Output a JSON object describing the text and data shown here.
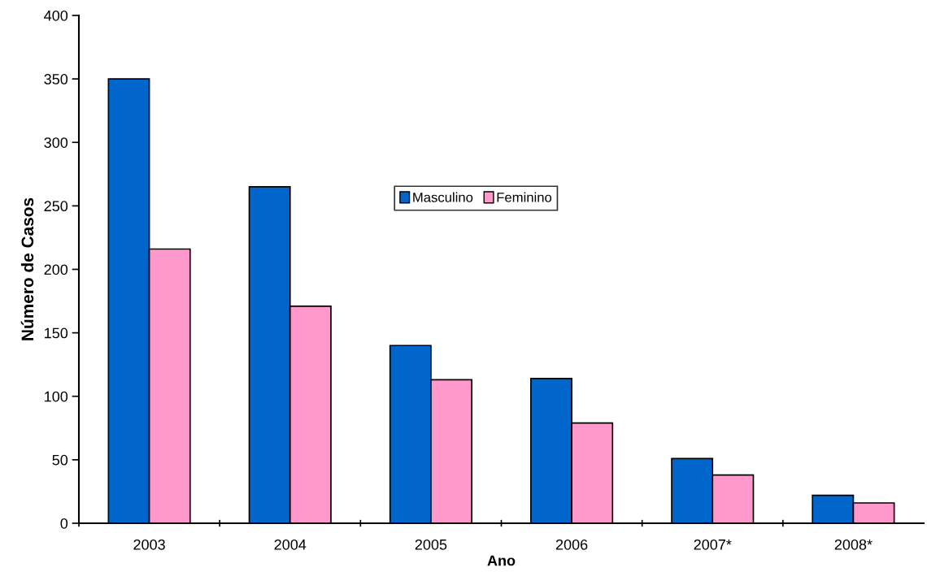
{
  "chart_data": {
    "type": "bar",
    "xlabel": "Ano",
    "ylabel": "Número de Casos",
    "categories": [
      "2003",
      "2004",
      "2005",
      "2006",
      "2007*",
      "2008*"
    ],
    "series": [
      {
        "name": "Masculino",
        "color": "#0066cc",
        "values": [
          350,
          265,
          140,
          114,
          51,
          22
        ]
      },
      {
        "name": "Feminino",
        "color": "#ff99cc",
        "values": [
          216,
          171,
          113,
          79,
          38,
          16
        ]
      }
    ],
    "ylim": [
      0,
      400
    ],
    "yticks": [
      0,
      50,
      100,
      150,
      200,
      250,
      300,
      350,
      400
    ],
    "grid": false,
    "legend": "center"
  }
}
